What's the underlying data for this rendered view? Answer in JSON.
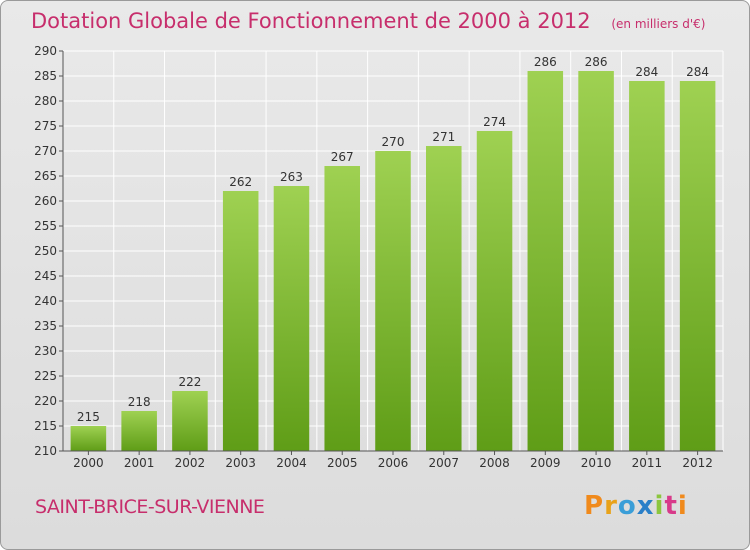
{
  "title": "Dotation Globale de Fonctionnement de 2000 à 2012",
  "unit": "(en milliers d'€)",
  "commune": "SAINT-BRICE-SUR-VIENNE",
  "logo": {
    "letters": [
      "P",
      "r",
      "o",
      "x",
      "i",
      "t",
      "i"
    ],
    "colors": [
      "#f08a1c",
      "#e8a21a",
      "#3a9ed8",
      "#2a7fc8",
      "#8cc63f",
      "#d83a8a",
      "#f08a1c"
    ]
  },
  "colors": {
    "bar_top": "#9fd152",
    "bar_bottom": "#5f9d17",
    "grid": "#ffffff",
    "accent": "#c72e6c"
  },
  "chart_data": {
    "type": "bar",
    "title": "Dotation Globale de Fonctionnement de 2000 à 2012",
    "ylabel": "(en milliers d'€)",
    "categories": [
      "2000",
      "2001",
      "2002",
      "2003",
      "2004",
      "2005",
      "2006",
      "2007",
      "2008",
      "2009",
      "2010",
      "2011",
      "2012"
    ],
    "values": [
      215,
      218,
      222,
      262,
      263,
      267,
      270,
      271,
      274,
      286,
      286,
      284,
      284
    ],
    "ylim": [
      210,
      290
    ],
    "yticks": [
      210,
      215,
      220,
      225,
      230,
      235,
      240,
      245,
      250,
      255,
      260,
      265,
      270,
      275,
      280,
      285,
      290
    ],
    "grid": true
  }
}
